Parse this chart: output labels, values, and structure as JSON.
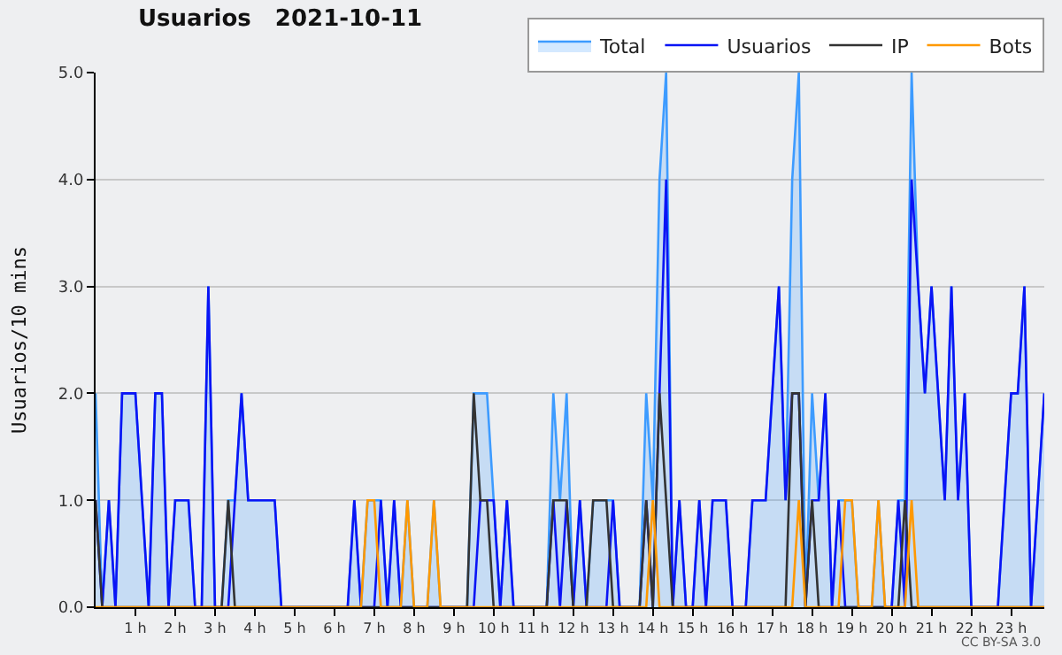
{
  "chart_data": {
    "type": "line",
    "title": "Usuarios   2021-10-11",
    "ylabel": "Usuarios/10 mins",
    "x": [
      0,
      0.1667,
      0.3333,
      0.5,
      0.6667,
      0.8333,
      1,
      1.1667,
      1.3333,
      1.5,
      1.6667,
      1.8333,
      2,
      2.1667,
      2.3333,
      2.5,
      2.6667,
      2.8333,
      3,
      3.1667,
      3.3333,
      3.5,
      3.6667,
      3.8333,
      4,
      4.1667,
      4.3333,
      4.5,
      4.6667,
      4.8333,
      5,
      5.1667,
      5.3333,
      5.5,
      5.6667,
      5.8333,
      6,
      6.1667,
      6.3333,
      6.5,
      6.6667,
      6.8333,
      7,
      7.1667,
      7.3333,
      7.5,
      7.6667,
      7.8333,
      8,
      8.1667,
      8.3333,
      8.5,
      8.6667,
      8.8333,
      9,
      9.1667,
      9.3333,
      9.5,
      9.6667,
      9.8333,
      10,
      10.1667,
      10.3333,
      10.5,
      10.6667,
      10.8333,
      11,
      11.1667,
      11.3333,
      11.5,
      11.6667,
      11.8333,
      12,
      12.1667,
      12.3333,
      12.5,
      12.6667,
      12.8333,
      13,
      13.1667,
      13.3333,
      13.5,
      13.6667,
      13.8333,
      14,
      14.1667,
      14.3333,
      14.5,
      14.6667,
      14.8333,
      15,
      15.1667,
      15.3333,
      15.5,
      15.6667,
      15.8333,
      16,
      16.1667,
      16.3333,
      16.5,
      16.6667,
      16.8333,
      17,
      17.1667,
      17.3333,
      17.5,
      17.6667,
      17.8333,
      18,
      18.1667,
      18.3333,
      18.5,
      18.6667,
      18.8333,
      19,
      19.1667,
      19.3333,
      19.5,
      19.6667,
      19.8333,
      20,
      20.1667,
      20.3333,
      20.5,
      20.6667,
      20.8333,
      21,
      21.1667,
      21.3333,
      21.5,
      21.6667,
      21.8333,
      22,
      22.1667,
      22.3333,
      22.5,
      22.6667,
      22.8333,
      23,
      23.1667,
      23.3333,
      23.5,
      23.6667,
      23.8333
    ],
    "series": [
      {
        "name": "Total",
        "type": "area",
        "color": "#3d9bff",
        "values": [
          2,
          0,
          1,
          0,
          2,
          2,
          2,
          1,
          0,
          2,
          2,
          0,
          1,
          1,
          1,
          0,
          0,
          3,
          0,
          0,
          1,
          1,
          2,
          1,
          1,
          1,
          1,
          1,
          0,
          0,
          0,
          0,
          0,
          0,
          0,
          0,
          0,
          0,
          0,
          1,
          0,
          1,
          1,
          1,
          0,
          1,
          0,
          1,
          0,
          0,
          0,
          1,
          0,
          0,
          0,
          0,
          0,
          2,
          2,
          2,
          1,
          0,
          1,
          0,
          0,
          0,
          0,
          0,
          0,
          2,
          1,
          2,
          0,
          1,
          0,
          1,
          1,
          1,
          1,
          0,
          0,
          0,
          0,
          2,
          1,
          4,
          5,
          0,
          1,
          0,
          0,
          1,
          0,
          1,
          1,
          1,
          0,
          0,
          0,
          1,
          1,
          1,
          2,
          3,
          1,
          4,
          5,
          0,
          2,
          1,
          2,
          0,
          1,
          1,
          1,
          0,
          0,
          0,
          1,
          0,
          0,
          1,
          1,
          5,
          3,
          2,
          3,
          2,
          1,
          3,
          1,
          2,
          0,
          0,
          0,
          0,
          0,
          1,
          2,
          2,
          3,
          0,
          1,
          2
        ]
      },
      {
        "name": "Usuarios",
        "color": "#0a14f5",
        "values": [
          1,
          0,
          1,
          0,
          2,
          2,
          2,
          1,
          0,
          2,
          2,
          0,
          1,
          1,
          1,
          0,
          0,
          3,
          0,
          0,
          0,
          1,
          2,
          1,
          1,
          1,
          1,
          1,
          0,
          0,
          0,
          0,
          0,
          0,
          0,
          0,
          0,
          0,
          0,
          1,
          0,
          0,
          0,
          1,
          0,
          1,
          0,
          0,
          0,
          0,
          0,
          0,
          0,
          0,
          0,
          0,
          0,
          0,
          1,
          1,
          1,
          0,
          1,
          0,
          0,
          0,
          0,
          0,
          0,
          1,
          0,
          1,
          0,
          1,
          0,
          0,
          0,
          0,
          1,
          0,
          0,
          0,
          0,
          1,
          0,
          2,
          4,
          0,
          1,
          0,
          0,
          1,
          0,
          1,
          1,
          1,
          0,
          0,
          0,
          1,
          1,
          1,
          2,
          3,
          1,
          2,
          2,
          0,
          1,
          1,
          2,
          0,
          1,
          0,
          0,
          0,
          0,
          0,
          0,
          0,
          0,
          1,
          0,
          4,
          3,
          2,
          3,
          2,
          1,
          3,
          1,
          2,
          0,
          0,
          0,
          0,
          0,
          1,
          2,
          2,
          3,
          0,
          1,
          2
        ]
      },
      {
        "name": "IP",
        "color": "#333333",
        "values": [
          1,
          0,
          0,
          0,
          0,
          0,
          0,
          0,
          0,
          0,
          0,
          0,
          0,
          0,
          0,
          0,
          0,
          0,
          0,
          0,
          1,
          0,
          0,
          0,
          0,
          0,
          0,
          0,
          0,
          0,
          0,
          0,
          0,
          0,
          0,
          0,
          0,
          0,
          0,
          0,
          0,
          0,
          0,
          0,
          0,
          0,
          0,
          0,
          0,
          0,
          0,
          0,
          0,
          0,
          0,
          0,
          0,
          2,
          1,
          1,
          0,
          0,
          0,
          0,
          0,
          0,
          0,
          0,
          0,
          1,
          1,
          1,
          0,
          0,
          0,
          1,
          1,
          1,
          0,
          0,
          0,
          0,
          0,
          1,
          0,
          2,
          1,
          0,
          0,
          0,
          0,
          0,
          0,
          0,
          0,
          0,
          0,
          0,
          0,
          0,
          0,
          0,
          0,
          0,
          0,
          2,
          2,
          0,
          1,
          0,
          0,
          0,
          0,
          0,
          0,
          0,
          0,
          0,
          0,
          0,
          0,
          0,
          1,
          0,
          0,
          0,
          0,
          0,
          0,
          0,
          0,
          0,
          0,
          0,
          0,
          0,
          0,
          0,
          0,
          0,
          0,
          0,
          0,
          0
        ]
      },
      {
        "name": "Bots",
        "color": "#ff9900",
        "values": [
          0,
          0,
          0,
          0,
          0,
          0,
          0,
          0,
          0,
          0,
          0,
          0,
          0,
          0,
          0,
          0,
          0,
          0,
          0,
          0,
          0,
          0,
          0,
          0,
          0,
          0,
          0,
          0,
          0,
          0,
          0,
          0,
          0,
          0,
          0,
          0,
          0,
          0,
          0,
          0,
          0,
          1,
          1,
          0,
          0,
          0,
          0,
          1,
          0,
          0,
          0,
          1,
          0,
          0,
          0,
          0,
          0,
          0,
          0,
          0,
          0,
          0,
          0,
          0,
          0,
          0,
          0,
          0,
          0,
          0,
          0,
          0,
          0,
          0,
          0,
          0,
          0,
          0,
          0,
          0,
          0,
          0,
          0,
          0,
          1,
          0,
          0,
          0,
          0,
          0,
          0,
          0,
          0,
          0,
          0,
          0,
          0,
          0,
          0,
          0,
          0,
          0,
          0,
          0,
          0,
          0,
          1,
          0,
          0,
          0,
          0,
          0,
          0,
          1,
          1,
          0,
          0,
          0,
          1,
          0,
          0,
          0,
          0,
          1,
          0,
          0,
          0,
          0,
          0,
          0,
          0,
          0,
          0,
          0,
          0,
          0,
          0,
          0,
          0,
          0,
          0,
          0,
          0,
          0
        ]
      }
    ],
    "xlim": [
      0,
      23.8333
    ],
    "xticks": [
      {
        "value": 1,
        "label": "1 h"
      },
      {
        "value": 2,
        "label": "2 h"
      },
      {
        "value": 3,
        "label": "3 h"
      },
      {
        "value": 4,
        "label": "4 h"
      },
      {
        "value": 5,
        "label": "5 h"
      },
      {
        "value": 6,
        "label": "6 h"
      },
      {
        "value": 7,
        "label": "7 h"
      },
      {
        "value": 8,
        "label": "8 h"
      },
      {
        "value": 9,
        "label": "9 h"
      },
      {
        "value": 10,
        "label": "10 h"
      },
      {
        "value": 11,
        "label": "11 h"
      },
      {
        "value": 12,
        "label": "12 h"
      },
      {
        "value": 13,
        "label": "13 h"
      },
      {
        "value": 14,
        "label": "14 h"
      },
      {
        "value": 15,
        "label": "15 h"
      },
      {
        "value": 16,
        "label": "16 h"
      },
      {
        "value": 17,
        "label": "17 h"
      },
      {
        "value": 18,
        "label": "18 h"
      },
      {
        "value": 19,
        "label": "19 h"
      },
      {
        "value": 20,
        "label": "20 h"
      },
      {
        "value": 21,
        "label": "21 h"
      },
      {
        "value": 22,
        "label": "22 h"
      },
      {
        "value": 23,
        "label": "23 h"
      }
    ],
    "ylim": [
      0,
      5
    ],
    "yticks": [
      {
        "value": 0,
        "label": "0.0"
      },
      {
        "value": 1,
        "label": "1.0"
      },
      {
        "value": 2,
        "label": "2.0"
      },
      {
        "value": 3,
        "label": "3.0"
      },
      {
        "value": 4,
        "label": "4.0"
      },
      {
        "value": 5,
        "label": "5.0"
      }
    ],
    "grid": "y",
    "legend": "top right",
    "annotations": [
      "CC BY-SA 3.0"
    ]
  }
}
